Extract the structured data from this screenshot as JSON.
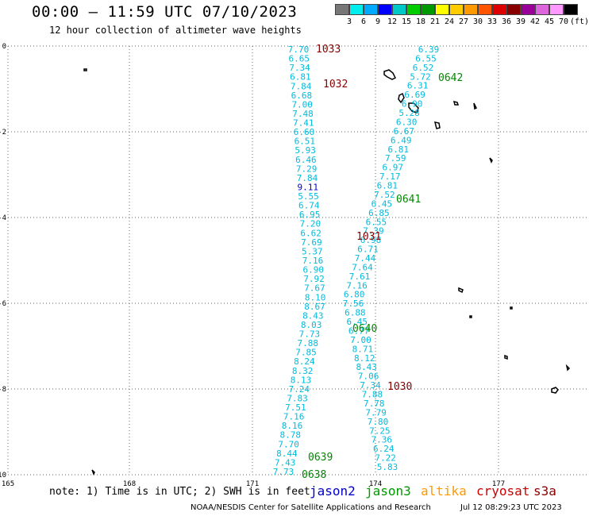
{
  "header": {
    "title": "00:00 — 11:59 UTC 07/10/2023",
    "subtitle": "12 hour collection of altimeter wave heights"
  },
  "scale": {
    "labels": [
      "3",
      "6",
      "9",
      "12",
      "15",
      "18",
      "21",
      "24",
      "27",
      "30",
      "33",
      "36",
      "39",
      "42",
      "45",
      "70"
    ],
    "unit": "(ft)",
    "colors": [
      "#777777",
      "#00eeee",
      "#00aaff",
      "#0000ff",
      "#00c8c8",
      "#00cc00",
      "#009900",
      "#ffff00",
      "#ffcc00",
      "#ff9900",
      "#ff5500",
      "#dd0000",
      "#880000",
      "#990099",
      "#dd66dd",
      "#ff99ff",
      "#000000"
    ]
  },
  "axes": {
    "lon_labels": [
      "165",
      "168",
      "171",
      "174",
      "177"
    ],
    "lat_labels": [
      "0",
      "-2",
      "-4",
      "-6",
      "-8",
      "-10"
    ]
  },
  "track_left": {
    "points": [
      "7.70",
      "6.65",
      "7.34",
      "6.81",
      "7.84",
      "6.68",
      "7.00",
      "7.48",
      "7.41",
      "6.60",
      "6.51",
      "5.93",
      "6.46",
      "7.29",
      "7.84",
      "9.11",
      "5.55",
      "6.74",
      "6.95",
      "7.20",
      "6.62",
      "7.69",
      "5.37",
      "7.16",
      "6.90",
      "7.92",
      "7.67",
      "8.10",
      "8.67",
      "8.43",
      "8.03",
      "7.73",
      "7.88",
      "7.85",
      "8.24",
      "8.32",
      "8.13",
      "7.24",
      "7.83",
      "7.51",
      "7.16",
      "8.16",
      "8.78",
      "7.70",
      "8.44",
      "7.43",
      "7.73"
    ],
    "colors": [
      "cyan",
      "cyan",
      "cyan",
      "cyan",
      "cyan",
      "cyan",
      "cyan",
      "cyan",
      "cyan",
      "cyan",
      "cyan",
      "cyan",
      "cyan",
      "cyan",
      "cyan",
      "blue",
      "cyan",
      "cyan",
      "cyan",
      "cyan",
      "cyan",
      "cyan",
      "cyan",
      "cyan",
      "cyan",
      "cyan",
      "cyan",
      "cyan",
      "cyan",
      "cyan",
      "cyan",
      "cyan",
      "cyan",
      "cyan",
      "cyan",
      "cyan",
      "cyan",
      "cyan",
      "cyan",
      "cyan",
      "cyan",
      "cyan",
      "cyan",
      "cyan",
      "cyan",
      "cyan",
      "cyan"
    ]
  },
  "track_right": {
    "points": [
      "6.39",
      "6.55",
      "6.52",
      "5.72",
      "6.31",
      "6.69",
      "6.90",
      "5.28",
      "6.30",
      "6.67",
      "6.49",
      "6.81",
      "7.59",
      "6.97",
      "7.17",
      "6.81",
      "7.52",
      "6.45",
      "6.85",
      "6.55",
      "7.39",
      "6.98",
      "6.71",
      "7.44",
      "7.64",
      "7.61",
      "7.16",
      "6.80",
      "7.56",
      "6.88",
      "6.45",
      "6.77",
      "7.00",
      "8.71",
      "8.12",
      "8.43",
      "7.06",
      "7.34",
      "7.88",
      "7.78",
      "7.79",
      "7.80",
      "7.25",
      "7.36",
      "6.24",
      "7.22",
      "5.83"
    ]
  },
  "time_labels": [
    {
      "text": "1033",
      "color": "#880000"
    },
    {
      "text": "1032",
      "color": "#880000"
    },
    {
      "text": "0642",
      "color": "#008800"
    },
    {
      "text": "0641",
      "color": "#008800"
    },
    {
      "text": "1031",
      "color": "#880000"
    },
    {
      "text": "0640",
      "color": "#008800"
    },
    {
      "text": "1030",
      "color": "#880000"
    },
    {
      "text": "0639",
      "color": "#008800"
    },
    {
      "text": "0638",
      "color": "#008800"
    }
  ],
  "footer": {
    "note": "note: 1) Time is in UTC; 2) SWH is in feet",
    "satellites": [
      {
        "name": "jason2",
        "color": "#0000cc"
      },
      {
        "name": "jason3",
        "color": "#009900"
      },
      {
        "name": "altika",
        "color": "#ff9900"
      },
      {
        "name": "cryosat",
        "color": "#cc0000"
      },
      {
        "name": "s3a",
        "color": "#880000"
      }
    ],
    "credit": "NOAA/NESDIS Center for Satellite Applications and Research",
    "timestamp": "Jul 12 08:29:23 UTC 2023"
  }
}
